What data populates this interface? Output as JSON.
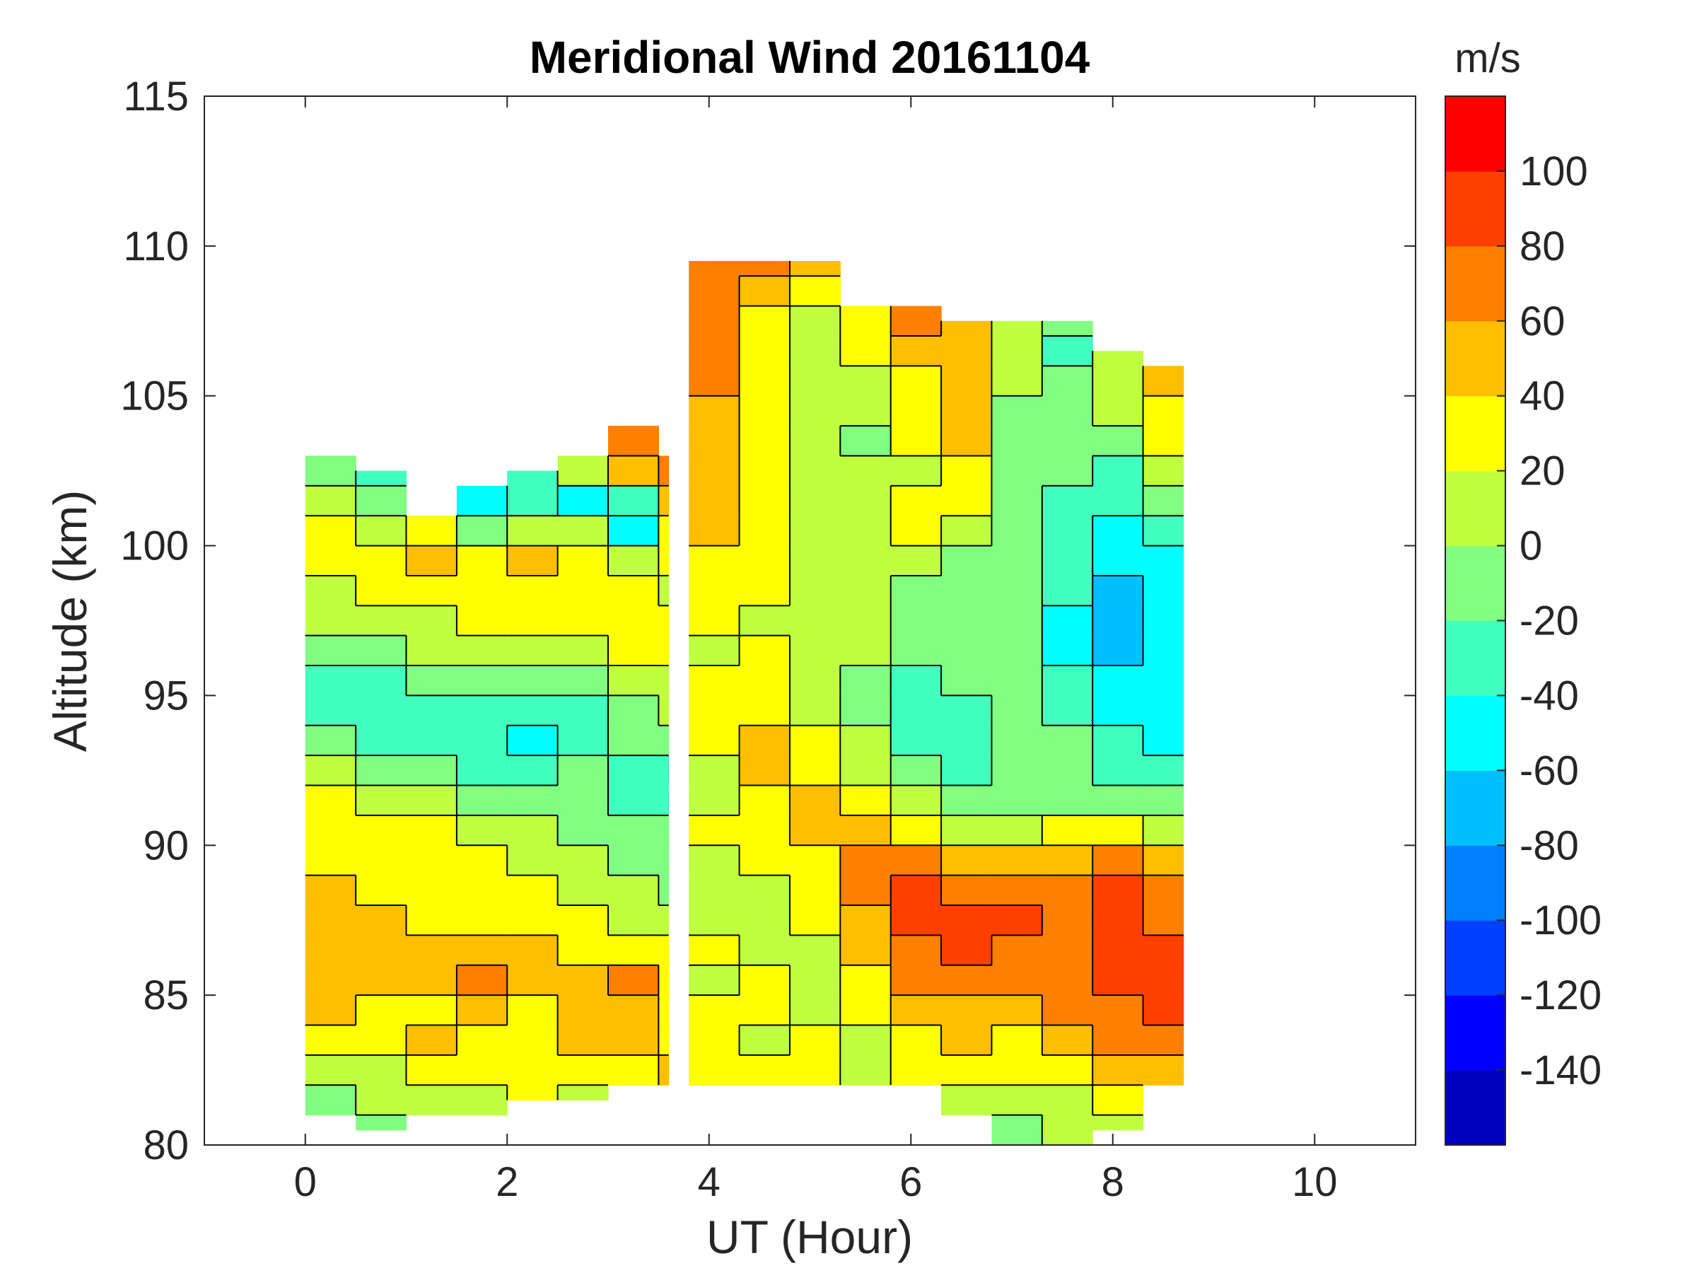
{
  "chart_data": {
    "type": "heatmap",
    "title": "Meridional Wind 20161104",
    "xlabel": "UT (Hour)",
    "ylabel": "Altitude (km)",
    "xlim": [
      -1,
      11
    ],
    "ylim": [
      80,
      115
    ],
    "xticks": [
      0,
      2,
      4,
      6,
      8,
      10
    ],
    "yticks": [
      80,
      85,
      90,
      95,
      100,
      105,
      110,
      115
    ],
    "grid": false,
    "colorbar": {
      "label": "m/s",
      "range": [
        -160,
        120
      ],
      "step": 20,
      "ticks": [
        -140,
        -120,
        -100,
        -80,
        -60,
        -40,
        -20,
        0,
        20,
        40,
        60,
        80,
        100
      ],
      "colors": [
        "#0000BF",
        "#0000FF",
        "#0040FF",
        "#0080FF",
        "#00BFFF",
        "#00FFFF",
        "#40FFBF",
        "#80FF80",
        "#BFFF40",
        "#FFFF00",
        "#FFBF00",
        "#FF8000",
        "#FF4000",
        "#FF0000"
      ]
    },
    "contour_color": "#000000",
    "regions": [
      {
        "x_start": 0,
        "x_end": 3.6,
        "col_width": 0.5,
        "col_tops": [
          103,
          102.5,
          101,
          102,
          102.5,
          103,
          104,
          103
        ],
        "col_bottoms": [
          81,
          80.5,
          81,
          81,
          81.5,
          81.5,
          82,
          82
        ],
        "rows": [
          {
            "alt": 103,
            "values": [
              -10,
              -10,
              10,
              10,
              10,
              30,
              70,
              90
            ]
          },
          {
            "alt": 102,
            "values": [
              -10,
              -30,
              -10,
              -30,
              -30,
              10,
              50,
              70
            ]
          },
          {
            "alt": 101,
            "values": [
              10,
              -10,
              -30,
              -50,
              -30,
              -50,
              -30,
              50
            ]
          },
          {
            "alt": 100,
            "values": [
              30,
              10,
              30,
              -10,
              10,
              10,
              -50,
              30
            ]
          },
          {
            "alt": 99,
            "values": [
              30,
              30,
              50,
              30,
              50,
              30,
              10,
              30
            ]
          },
          {
            "alt": 98,
            "values": [
              10,
              30,
              30,
              30,
              30,
              30,
              30,
              10
            ]
          },
          {
            "alt": 97,
            "values": [
              10,
              10,
              10,
              30,
              30,
              30,
              30,
              30
            ]
          },
          {
            "alt": 96,
            "values": [
              -10,
              -10,
              10,
              10,
              10,
              10,
              30,
              30
            ]
          },
          {
            "alt": 95,
            "values": [
              -30,
              -30,
              -10,
              -10,
              -10,
              -10,
              10,
              10
            ]
          },
          {
            "alt": 94,
            "values": [
              -30,
              -30,
              -30,
              -30,
              -30,
              -30,
              -10,
              10
            ]
          },
          {
            "alt": 93,
            "values": [
              -10,
              -30,
              -30,
              -30,
              -50,
              -30,
              -10,
              -10
            ]
          },
          {
            "alt": 92,
            "values": [
              10,
              -10,
              -10,
              -30,
              -30,
              -10,
              -30,
              -30
            ]
          },
          {
            "alt": 91,
            "values": [
              30,
              10,
              10,
              -10,
              -10,
              -10,
              -30,
              -30
            ]
          },
          {
            "alt": 90,
            "values": [
              30,
              30,
              30,
              10,
              10,
              -10,
              -10,
              -10
            ]
          },
          {
            "alt": 89,
            "values": [
              30,
              30,
              30,
              30,
              10,
              10,
              -10,
              -10
            ]
          },
          {
            "alt": 88,
            "values": [
              50,
              30,
              30,
              30,
              30,
              10,
              10,
              -10
            ]
          },
          {
            "alt": 87,
            "values": [
              50,
              50,
              30,
              30,
              30,
              30,
              10,
              10
            ]
          },
          {
            "alt": 86,
            "values": [
              50,
              50,
              50,
              50,
              50,
              30,
              30,
              30
            ]
          },
          {
            "alt": 85,
            "values": [
              50,
              50,
              50,
              70,
              50,
              50,
              70,
              30
            ]
          },
          {
            "alt": 84,
            "values": [
              50,
              30,
              30,
              50,
              30,
              50,
              50,
              30
            ]
          },
          {
            "alt": 83,
            "values": [
              30,
              30,
              50,
              30,
              30,
              50,
              50,
              30
            ]
          },
          {
            "alt": 82,
            "values": [
              10,
              10,
              30,
              30,
              30,
              30,
              30,
              50
            ]
          },
          {
            "alt": 81,
            "values": [
              -10,
              10,
              10,
              10,
              30,
              10,
              50,
              50
            ]
          },
          {
            "alt": 80,
            "values": [
              -10,
              -10,
              -10,
              10,
              10,
              10,
              30,
              30
            ]
          }
        ]
      },
      {
        "x_start": 3.8,
        "x_end": 8.7,
        "col_width": 0.5,
        "col_tops": [
          109.5,
          109.5,
          109.5,
          108,
          108,
          107.5,
          107.5,
          107.5,
          106.5,
          106
        ],
        "col_bottoms": [
          82,
          82,
          82,
          82,
          82,
          81,
          80,
          80,
          80.5,
          82
        ],
        "rows": [
          {
            "alt": 109,
            "values": [
              70,
              70,
              50,
              30,
              50,
              30,
              10,
              10,
              10,
              10
            ]
          },
          {
            "alt": 108,
            "values": [
              70,
              50,
              30,
              30,
              50,
              30,
              10,
              10,
              10,
              10
            ]
          },
          {
            "alt": 107,
            "values": [
              70,
              30,
              10,
              30,
              70,
              50,
              10,
              -10,
              10,
              10
            ]
          },
          {
            "alt": 106,
            "values": [
              70,
              30,
              10,
              30,
              50,
              50,
              10,
              -30,
              10,
              30
            ]
          },
          {
            "alt": 105,
            "values": [
              70,
              30,
              10,
              10,
              30,
              50,
              10,
              -10,
              10,
              50
            ]
          },
          {
            "alt": 104,
            "values": [
              50,
              30,
              10,
              10,
              30,
              50,
              -10,
              -10,
              10,
              30
            ]
          },
          {
            "alt": 103,
            "values": [
              50,
              30,
              10,
              -10,
              30,
              50,
              -10,
              -10,
              -10,
              30
            ]
          },
          {
            "alt": 102,
            "values": [
              50,
              30,
              10,
              10,
              10,
              30,
              -10,
              -10,
              -30,
              10
            ]
          },
          {
            "alt": 101,
            "values": [
              50,
              30,
              10,
              10,
              30,
              30,
              -10,
              -30,
              -30,
              -10
            ]
          },
          {
            "alt": 100,
            "values": [
              50,
              30,
              10,
              10,
              30,
              10,
              -10,
              -30,
              -50,
              -30
            ]
          },
          {
            "alt": 99,
            "values": [
              30,
              30,
              10,
              10,
              10,
              -10,
              -10,
              -30,
              -50,
              -50
            ]
          },
          {
            "alt": 98,
            "values": [
              30,
              30,
              10,
              10,
              -10,
              -10,
              -10,
              -30,
              -70,
              -50
            ]
          },
          {
            "alt": 97,
            "values": [
              30,
              10,
              10,
              10,
              -10,
              -10,
              -10,
              -50,
              -70,
              -50
            ]
          },
          {
            "alt": 96,
            "values": [
              10,
              30,
              10,
              10,
              -10,
              -10,
              -10,
              -50,
              -70,
              -50
            ]
          },
          {
            "alt": 95,
            "values": [
              30,
              30,
              10,
              -10,
              -30,
              -10,
              -10,
              -30,
              -50,
              -50
            ]
          },
          {
            "alt": 94,
            "values": [
              30,
              30,
              10,
              -10,
              -30,
              -30,
              -10,
              -30,
              -50,
              -50
            ]
          },
          {
            "alt": 93,
            "values": [
              30,
              50,
              30,
              10,
              -30,
              -30,
              -10,
              -10,
              -30,
              -50
            ]
          },
          {
            "alt": 92,
            "values": [
              10,
              50,
              30,
              10,
              -10,
              -30,
              -10,
              -10,
              -30,
              -30
            ]
          },
          {
            "alt": 91,
            "values": [
              10,
              30,
              50,
              30,
              10,
              -10,
              -10,
              -10,
              -10,
              -10
            ]
          },
          {
            "alt": 90,
            "values": [
              30,
              30,
              50,
              50,
              30,
              10,
              10,
              30,
              30,
              10
            ]
          },
          {
            "alt": 89,
            "values": [
              10,
              30,
              30,
              70,
              70,
              50,
              50,
              50,
              70,
              50
            ]
          },
          {
            "alt": 88,
            "values": [
              10,
              10,
              30,
              70,
              90,
              70,
              70,
              70,
              90,
              70
            ]
          },
          {
            "alt": 87,
            "values": [
              10,
              10,
              30,
              50,
              90,
              90,
              90,
              70,
              90,
              70
            ]
          },
          {
            "alt": 86,
            "values": [
              30,
              10,
              10,
              50,
              70,
              90,
              70,
              70,
              90,
              90
            ]
          },
          {
            "alt": 85,
            "values": [
              10,
              30,
              10,
              30,
              70,
              70,
              70,
              70,
              90,
              90
            ]
          },
          {
            "alt": 84,
            "values": [
              30,
              30,
              10,
              30,
              50,
              50,
              50,
              70,
              70,
              90
            ]
          },
          {
            "alt": 83,
            "values": [
              30,
              10,
              30,
              10,
              30,
              50,
              30,
              50,
              70,
              70
            ]
          },
          {
            "alt": 82,
            "values": [
              30,
              30,
              30,
              10,
              30,
              30,
              30,
              30,
              50,
              50
            ]
          },
          {
            "alt": 81,
            "values": [
              10,
              10,
              10,
              10,
              10,
              10,
              10,
              10,
              30,
              30
            ]
          },
          {
            "alt": 80,
            "values": [
              10,
              10,
              10,
              10,
              10,
              -10,
              -10,
              10,
              10,
              10
            ]
          }
        ]
      }
    ]
  }
}
